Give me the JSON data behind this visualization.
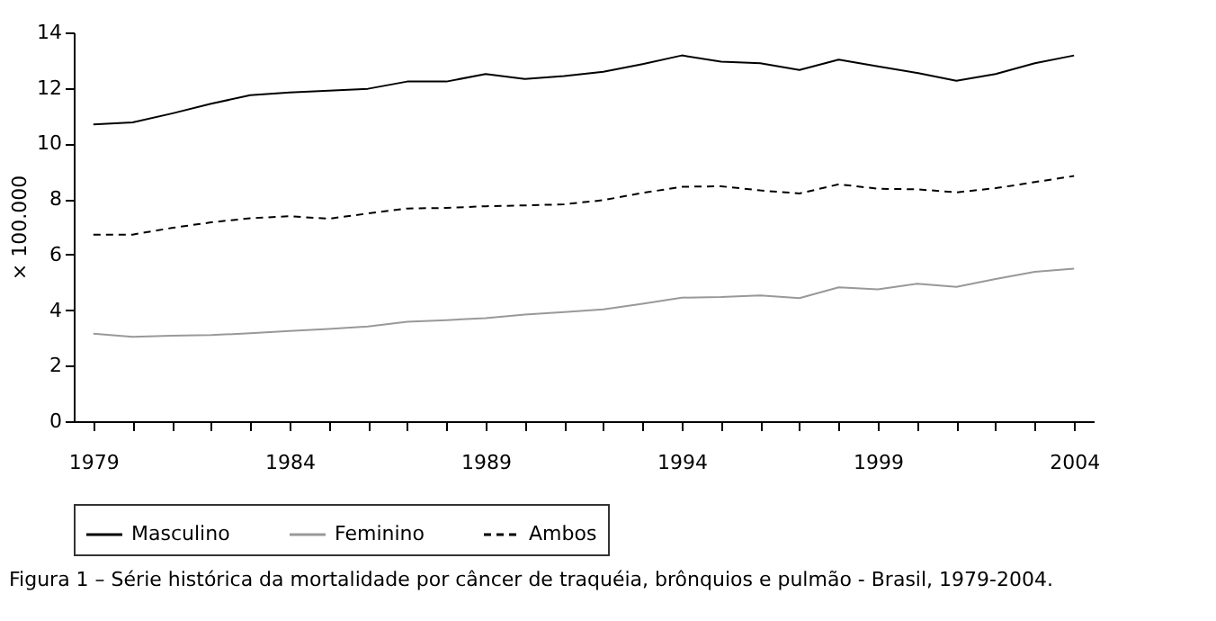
{
  "chart_data": {
    "type": "line",
    "ylabel": "× 100.000",
    "annotations": [
      "Figura 1 – Série histórica da mortalidade por câncer de traquéia, brônquios e pulmão - Brasil, 1979-2004."
    ],
    "x": [
      1979,
      1980,
      1981,
      1982,
      1983,
      1984,
      1985,
      1986,
      1987,
      1988,
      1989,
      1990,
      1991,
      1992,
      1993,
      1994,
      1995,
      1996,
      1997,
      1998,
      1999,
      2000,
      2001,
      2002,
      2003,
      2004
    ],
    "series": [
      {
        "name": "Masculino",
        "color": "#000000",
        "line_style": "solid",
        "values": [
          10.69,
          10.76,
          11.08,
          11.43,
          11.74,
          11.84,
          11.9,
          11.97,
          12.23,
          12.23,
          12.5,
          12.32,
          12.43,
          12.58,
          12.86,
          13.17,
          12.95,
          12.89,
          12.65,
          13.02,
          12.78,
          12.54,
          12.26,
          12.5,
          12.89,
          13.17
        ]
      },
      {
        "name": "Feminino",
        "color": "#999999",
        "line_style": "solid",
        "values": [
          3.15,
          3.04,
          3.08,
          3.1,
          3.17,
          3.25,
          3.32,
          3.41,
          3.58,
          3.64,
          3.71,
          3.84,
          3.93,
          4.03,
          4.23,
          4.45,
          4.47,
          4.53,
          4.43,
          4.82,
          4.75,
          4.95,
          4.84,
          5.12,
          5.38,
          5.49
        ]
      },
      {
        "name": "Ambos",
        "color": "#000000",
        "line_style": "dashed",
        "values": [
          6.72,
          6.72,
          6.96,
          7.16,
          7.31,
          7.38,
          7.29,
          7.48,
          7.66,
          7.68,
          7.74,
          7.77,
          7.81,
          7.96,
          8.22,
          8.44,
          8.46,
          8.31,
          8.2,
          8.53,
          8.37,
          8.35,
          8.24,
          8.39,
          8.61,
          8.83
        ]
      }
    ],
    "xlim": [
      1978.5,
      2004.5
    ],
    "xticks": [
      1979,
      {
        "value": 1980,
        "label": null
      },
      {
        "value": 1981,
        "label": null
      },
      {
        "value": 1982,
        "label": null
      },
      {
        "value": 1983,
        "label": null
      },
      1984,
      {
        "value": 1985,
        "label": null
      },
      {
        "value": 1986,
        "label": null
      },
      {
        "value": 1987,
        "label": null
      },
      {
        "value": 1988,
        "label": null
      },
      1989,
      {
        "value": 1990,
        "label": null
      },
      {
        "value": 1991,
        "label": null
      },
      {
        "value": 1992,
        "label": null
      },
      {
        "value": 1993,
        "label": null
      },
      1994,
      {
        "value": 1995,
        "label": null
      },
      {
        "value": 1996,
        "label": null
      },
      {
        "value": 1997,
        "label": null
      },
      {
        "value": 1998,
        "label": null
      },
      1999,
      {
        "value": 2000,
        "label": null
      },
      {
        "value": 2001,
        "label": null
      },
      {
        "value": 2002,
        "label": null
      },
      {
        "value": 2003,
        "label": null
      },
      2004
    ],
    "ylim": [
      0,
      14
    ],
    "yticks": [
      0,
      2,
      4,
      6,
      8,
      10,
      12,
      14
    ],
    "grid": false,
    "legend": "bottom",
    "marker": "none"
  }
}
